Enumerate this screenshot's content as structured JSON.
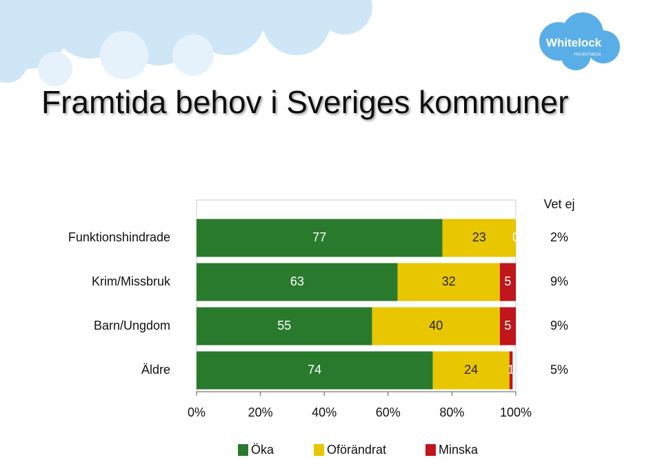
{
  "logo": {
    "name": "Whitelock",
    "tagline": "PROJEKTMEDIA"
  },
  "chart_data": {
    "type": "stacked_barh",
    "title": "Framtida behov i Sveriges kommuner",
    "categories": [
      "Funktionshindrade",
      "Krim/Missbruk",
      "Barn/Ungdom",
      "Äldre"
    ],
    "series": [
      {
        "name": "Öka",
        "color": "#2a7a2e",
        "values": [
          77,
          63,
          55,
          74
        ]
      },
      {
        "name": "Oförändrat",
        "color": "#e8c600",
        "values": [
          23,
          32,
          40,
          24
        ]
      },
      {
        "name": "Minska",
        "color": "#c0161c",
        "values": [
          0,
          5,
          5,
          1
        ]
      }
    ],
    "vet_ej": {
      "label": "Vet ej",
      "values": [
        2,
        9,
        9,
        5
      ],
      "value_labels": [
        "2%",
        "9%",
        "9%",
        "5%"
      ]
    },
    "xlim": [
      0,
      100
    ],
    "xticks": [
      {
        "value": 0,
        "label": "0%"
      },
      {
        "value": 20,
        "label": "20%"
      },
      {
        "value": 40,
        "label": "40%"
      },
      {
        "value": 60,
        "label": "60%"
      },
      {
        "value": 80,
        "label": "80%"
      },
      {
        "value": 100,
        "label": "100%"
      }
    ],
    "legend": "bottom"
  }
}
